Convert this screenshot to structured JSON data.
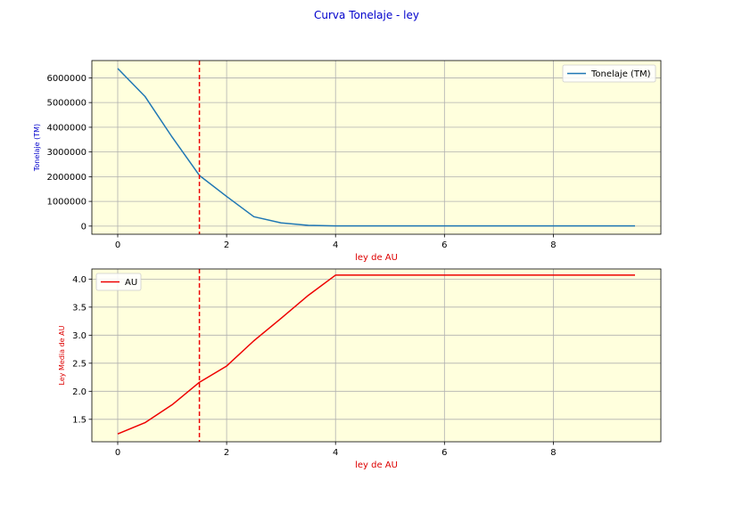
{
  "figure": {
    "title": "Curva Tonelaje - ley",
    "title_color": "#0000cc",
    "plot_background": "#ffffdd",
    "grid_color": "#b0b0b0"
  },
  "chart_data": [
    {
      "type": "line",
      "xlabel": "ley de AU",
      "ylabel": "Tonelaje (TM)",
      "xlabel_color": "#dd0000",
      "ylabel_color": "#0000cc",
      "xlim": [
        -0.475,
        9.975
      ],
      "ylim": [
        -330000,
        6700000
      ],
      "xticks": [
        "0",
        "2",
        "4",
        "6",
        "8"
      ],
      "xtick_values": [
        0,
        2,
        4,
        6,
        8
      ],
      "yticks": [
        "0",
        "1000000",
        "2000000",
        "3000000",
        "4000000",
        "5000000",
        "6000000"
      ],
      "ytick_values": [
        0,
        1000000,
        2000000,
        3000000,
        4000000,
        5000000,
        6000000
      ],
      "grid": true,
      "legend": "top-right",
      "cutoff_line": {
        "x": 1.5,
        "color": "#ee0000",
        "style": "dashed"
      },
      "series": [
        {
          "name": "Tonelaje (TM)",
          "color": "#1f77b4",
          "x": [
            0,
            0.5,
            1,
            1.5,
            2,
            2.5,
            3,
            3.5,
            4,
            4.5,
            5,
            5.5,
            6,
            6.5,
            7,
            7.5,
            8,
            8.5,
            9,
            9.5
          ],
          "y": [
            6380000,
            5250000,
            3600000,
            2050000,
            1200000,
            380000,
            130000,
            30000,
            10000,
            8000,
            8000,
            8000,
            8000,
            8000,
            8000,
            8000,
            8000,
            8000,
            8000,
            8000
          ]
        }
      ]
    },
    {
      "type": "line",
      "xlabel": "ley de AU",
      "ylabel": "Ley Media de AU",
      "xlabel_color": "#dd0000",
      "ylabel_color": "#dd0000",
      "xlim": [
        -0.475,
        9.975
      ],
      "ylim": [
        1.1,
        4.18
      ],
      "xticks": [
        "0",
        "2",
        "4",
        "6",
        "8"
      ],
      "xtick_values": [
        0,
        2,
        4,
        6,
        8
      ],
      "yticks": [
        "1.5",
        "2.0",
        "2.5",
        "3.0",
        "3.5",
        "4.0"
      ],
      "ytick_values": [
        1.5,
        2.0,
        2.5,
        3.0,
        3.5,
        4.0
      ],
      "grid": true,
      "legend": "top-left",
      "cutoff_line": {
        "x": 1.5,
        "color": "#ee0000",
        "style": "dashed"
      },
      "series": [
        {
          "name": "AU",
          "color": "#ee0000",
          "x": [
            0,
            0.5,
            1,
            1.5,
            2,
            2.5,
            3,
            3.5,
            4,
            4.5,
            5,
            5.5,
            6,
            6.5,
            7,
            7.5,
            8,
            8.5,
            9,
            9.5
          ],
          "y": [
            1.24,
            1.44,
            1.76,
            2.16,
            2.45,
            2.9,
            3.3,
            3.71,
            4.07,
            4.07,
            4.07,
            4.07,
            4.07,
            4.07,
            4.07,
            4.07,
            4.07,
            4.07,
            4.07,
            4.07
          ]
        }
      ]
    }
  ]
}
